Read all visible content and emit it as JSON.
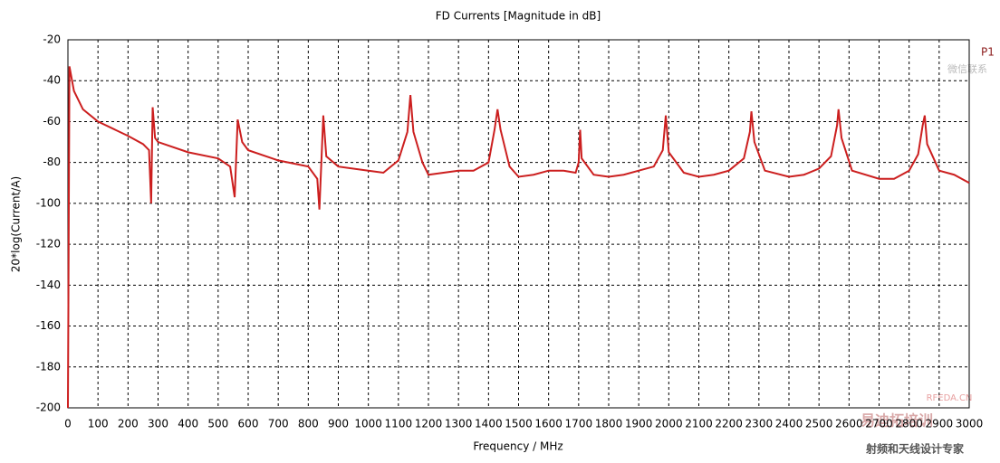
{
  "chart_data": {
    "type": "line",
    "title": "FD Currents [Magnitude in dB]",
    "xlabel": "Frequency / MHz",
    "ylabel": "20*log(Current/A)",
    "x": [
      0,
      5,
      20,
      50,
      100,
      200,
      250,
      270,
      277,
      282,
      290,
      300,
      400,
      500,
      540,
      555,
      565,
      580,
      600,
      700,
      800,
      830,
      837,
      850,
      860,
      900,
      1000,
      1050,
      1100,
      1130,
      1140,
      1150,
      1180,
      1200,
      1250,
      1300,
      1350,
      1400,
      1420,
      1430,
      1440,
      1470,
      1500,
      1550,
      1600,
      1650,
      1690,
      1700,
      1705,
      1710,
      1750,
      1800,
      1850,
      1900,
      1950,
      1980,
      1990,
      2000,
      2050,
      2100,
      2150,
      2200,
      2250,
      2270,
      2275,
      2285,
      2320,
      2400,
      2450,
      2500,
      2540,
      2560,
      2565,
      2575,
      2610,
      2700,
      2750,
      2800,
      2830,
      2845,
      2852,
      2860,
      2900,
      2950,
      3000
    ],
    "series": [
      {
        "name": "P1",
        "color": "#cc1f1f",
        "values": [
          -200,
          -33,
          -45,
          -54,
          -60,
          -67,
          -71,
          -74,
          -100,
          -53,
          -68,
          -70,
          -75,
          -78,
          -82,
          -97,
          -59,
          -70,
          -74,
          -79,
          -82,
          -88,
          -103,
          -57,
          -77,
          -82,
          -84,
          -85,
          -79,
          -65,
          -47,
          -65,
          -80,
          -86,
          -85,
          -84,
          -84,
          -80,
          -64,
          -54,
          -64,
          -82,
          -87,
          -86,
          -84,
          -84,
          -85,
          -80,
          -64,
          -78,
          -86,
          -87,
          -86,
          -84,
          -82,
          -74,
          -57,
          -75,
          -85,
          -87,
          -86,
          -84,
          -78,
          -65,
          -55,
          -70,
          -84,
          -87,
          -86,
          -83,
          -77,
          -62,
          -54,
          -68,
          -84,
          -88,
          -88,
          -84,
          -76,
          -62,
          -57,
          -71,
          -84,
          -86,
          -90
        ]
      }
    ],
    "xlim": [
      0,
      3000
    ],
    "ylim": [
      -200,
      -20
    ],
    "xticks": [
      0,
      100,
      200,
      300,
      400,
      500,
      600,
      700,
      800,
      900,
      1000,
      1100,
      1200,
      1300,
      1400,
      1500,
      1600,
      1700,
      1800,
      1900,
      2000,
      2100,
      2200,
      2300,
      2400,
      2500,
      2600,
      2700,
      2800,
      2900,
      3000
    ],
    "yticks": [
      -200,
      -180,
      -160,
      -140,
      -120,
      -100,
      -80,
      -60,
      -40,
      -20
    ],
    "grid": true,
    "watermarks": [
      "微信联系",
      "RFEDA.CN",
      "易迪拓培训",
      "射频和天线设计专家"
    ]
  }
}
